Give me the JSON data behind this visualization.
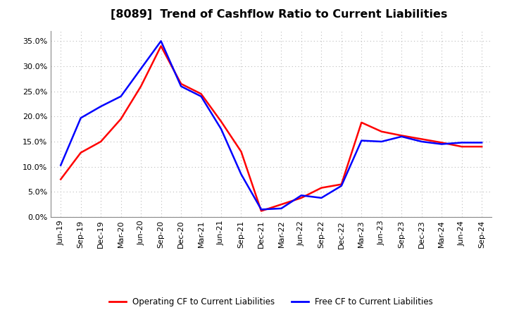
{
  "title": "[8089]  Trend of Cashflow Ratio to Current Liabilities",
  "x_labels": [
    "Jun-19",
    "Sep-19",
    "Dec-19",
    "Mar-20",
    "Jun-20",
    "Sep-20",
    "Dec-20",
    "Mar-21",
    "Jun-21",
    "Sep-21",
    "Dec-21",
    "Mar-22",
    "Jun-22",
    "Sep-22",
    "Dec-22",
    "Mar-23",
    "Jun-23",
    "Sep-23",
    "Dec-23",
    "Mar-24",
    "Jun-24",
    "Sep-24"
  ],
  "operating_cf": [
    0.075,
    0.128,
    0.15,
    0.195,
    0.26,
    0.34,
    0.265,
    0.245,
    0.19,
    0.13,
    0.012,
    0.025,
    0.038,
    0.058,
    0.065,
    0.188,
    0.17,
    0.162,
    0.155,
    0.148,
    0.14,
    0.14
  ],
  "free_cf": [
    0.103,
    0.197,
    0.22,
    0.24,
    0.295,
    0.35,
    0.26,
    0.24,
    0.175,
    0.085,
    0.015,
    0.017,
    0.043,
    0.038,
    0.062,
    0.152,
    0.15,
    0.16,
    0.15,
    0.145,
    0.148,
    0.148
  ],
  "operating_color": "#ff0000",
  "free_color": "#0000ff",
  "ylim": [
    0.0,
    0.37
  ],
  "yticks": [
    0.0,
    0.05,
    0.1,
    0.15,
    0.2,
    0.25,
    0.3,
    0.35
  ],
  "legend_op": "Operating CF to Current Liabilities",
  "legend_fr": "Free CF to Current Liabilities",
  "background_color": "#ffffff",
  "grid_color": "#bbbbbb",
  "title_fontsize": 11.5,
  "label_fontsize": 8,
  "legend_fontsize": 8.5
}
